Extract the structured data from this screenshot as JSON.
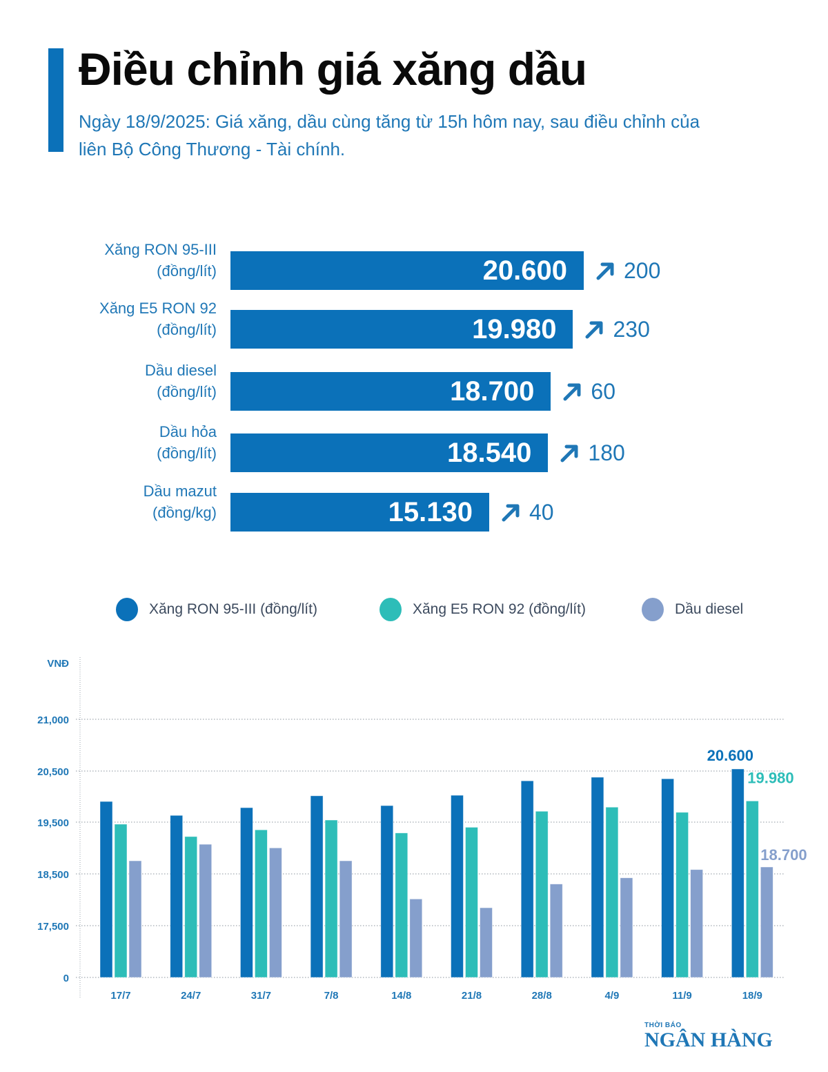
{
  "header": {
    "title": "Điều chỉnh giá xăng dầu",
    "subtitle": "Ngày 18/9/2025: Giá xăng, dầu cùng tăng từ 15h hôm nay, sau điều chỉnh của liên Bộ Công Thương - Tài chính."
  },
  "price_table": {
    "bar_color": "#0b71b9",
    "max_value": 20600,
    "items": [
      {
        "name": "Xăng RON 95-III",
        "unit": "(đồng/lít)",
        "price": 20600,
        "price_label": "20.600",
        "change_label": "200",
        "direction": "up"
      },
      {
        "name": "Xăng E5 RON 92",
        "unit": "(đồng/lít)",
        "price": 19980,
        "price_label": "19.980",
        "change_label": "230",
        "direction": "up"
      },
      {
        "name": "Dầu diesel",
        "unit": "(đồng/lít)",
        "price": 18700,
        "price_label": "18.700",
        "change_label": "60",
        "direction": "up"
      },
      {
        "name": "Dầu hỏa",
        "unit": "(đồng/lít)",
        "price": 18540,
        "price_label": "18.540",
        "change_label": "180",
        "direction": "up"
      },
      {
        "name": "Dầu mazut",
        "unit": "(đồng/kg)",
        "price": 15130,
        "price_label": "15.130",
        "change_label": "40",
        "direction": "up"
      }
    ]
  },
  "chart_data": [
    {
      "type": "bar",
      "title": "Điều chỉnh giá xăng dầu",
      "orientation": "horizontal",
      "categories": [
        "Xăng RON 95-III (đồng/lít)",
        "Xăng E5 RON 92 (đồng/lít)",
        "Dầu diesel (đồng/lít)",
        "Dầu hỏa (đồng/lít)",
        "Dầu mazut (đồng/kg)"
      ],
      "values": [
        20600,
        19980,
        18700,
        18540,
        15130
      ],
      "changes": [
        200,
        230,
        60,
        180,
        40
      ]
    },
    {
      "type": "bar",
      "title": "",
      "xlabel": "",
      "ylabel": "VNĐ",
      "categories": [
        "17/7",
        "24/7",
        "31/7",
        "7/8",
        "14/8",
        "21/8",
        "28/8",
        "4/9",
        "11/9",
        "18/9"
      ],
      "y_tick_labels": [
        "0",
        "17,500",
        "18,500",
        "19,500",
        "20,500",
        "21,000"
      ],
      "grid": true,
      "legend_position": "top",
      "series": [
        {
          "name": "Xăng RON 95-III (đồng/lít)",
          "color": "#0b71b9",
          "values": [
            19970,
            19700,
            19850,
            20080,
            19890,
            20090,
            20370,
            20440,
            20410,
            20600
          ]
        },
        {
          "name": "Xăng E5 RON 92 (đồng/lít)",
          "color": "#2dbdb8",
          "values": [
            19530,
            19290,
            19420,
            19610,
            19360,
            19470,
            19780,
            19860,
            19760,
            19980
          ]
        },
        {
          "name": "Dầu diesel",
          "color": "#859fcc",
          "values": [
            18820,
            19140,
            19070,
            18820,
            18080,
            17910,
            18370,
            18490,
            18650,
            18700
          ]
        }
      ],
      "annotations": [
        {
          "series": 0,
          "category": "18/9",
          "text": "20.600"
        },
        {
          "series": 1,
          "category": "18/9",
          "text": "19.980"
        },
        {
          "series": 2,
          "category": "18/9",
          "text": "18.700"
        }
      ]
    }
  ],
  "logo": {
    "small": "THỜI BÁO",
    "big": "NGÂN HÀNG"
  }
}
